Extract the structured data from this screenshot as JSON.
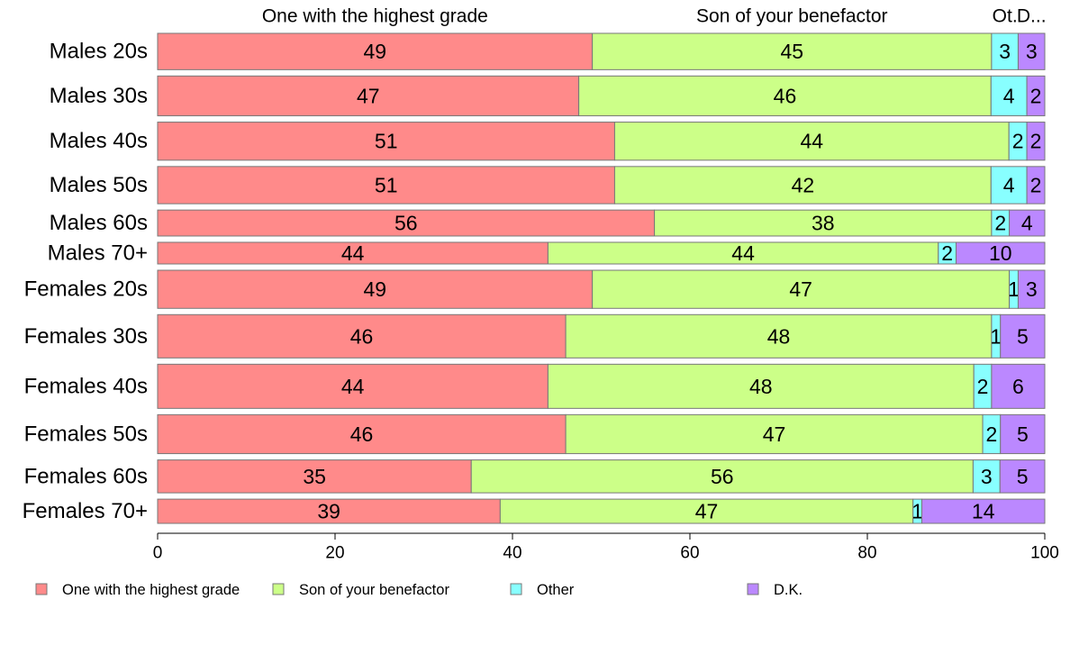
{
  "chart_data": {
    "type": "bar",
    "orientation": "horizontal",
    "stacked": true,
    "categories": [
      "Males 20s",
      "Males 30s",
      "Males 40s",
      "Males 50s",
      "Males 60s",
      "Males 70+",
      "Females 20s",
      "Females 30s",
      "Females 40s",
      "Females 50s",
      "Females 60s",
      "Females 70+"
    ],
    "bar_weights": [
      42,
      46,
      44,
      43,
      30,
      25,
      44,
      50,
      51,
      45,
      38,
      28
    ],
    "series": [
      {
        "name": "One with the highest grade",
        "color": "#ff8a8a",
        "values": [
          49,
          47,
          51,
          51,
          56,
          44,
          49,
          46,
          44,
          46,
          35,
          39
        ],
        "labels": [
          "49",
          "47",
          "51",
          "51",
          "56",
          "44",
          "49",
          "46",
          "44",
          "46",
          "35",
          "39"
        ]
      },
      {
        "name": "Son of your benefactor",
        "color": "#ccff88",
        "values": [
          45,
          46,
          44,
          42,
          38,
          44,
          47,
          48,
          48,
          47,
          56,
          47
        ],
        "labels": [
          "45",
          "46",
          "44",
          "42",
          "38",
          "44",
          "47",
          "48",
          "48",
          "47",
          "56",
          "47"
        ]
      },
      {
        "name": "Other",
        "color": "#88ffff",
        "values": [
          3,
          4,
          2,
          4,
          2,
          2,
          1,
          1,
          2,
          2,
          3,
          1
        ],
        "labels": [
          "3",
          "4",
          "2",
          "4",
          "2",
          "2",
          "1",
          "1",
          "2",
          "2",
          "3",
          "1"
        ]
      },
      {
        "name": "D.K.",
        "color": "#bb88ff",
        "values": [
          3,
          2,
          2,
          2,
          4,
          10,
          3,
          5,
          6,
          5,
          5,
          14
        ],
        "labels": [
          "3",
          "2",
          "2",
          "2",
          "4",
          "10",
          "3",
          "5",
          "6",
          "5",
          "5",
          "14"
        ]
      }
    ],
    "column_headers": [
      "One with the highest grade",
      "Son of your benefactor",
      "Ot.",
      "D..."
    ],
    "x_ticks": [
      "0",
      "20",
      "40",
      "60",
      "80",
      "100"
    ],
    "xlim": [
      0,
      100
    ],
    "title": "",
    "xlabel": "",
    "ylabel": "",
    "grid": false,
    "legend_position": "bottom"
  }
}
